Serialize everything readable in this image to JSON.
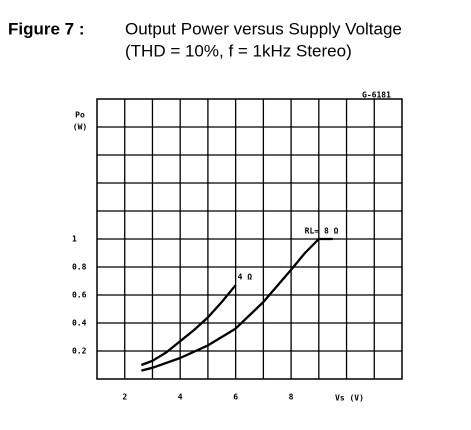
{
  "chart_data": {
    "type": "line",
    "figure_label": "Figure 7 :",
    "title": "Output Power versus Supply Voltage",
    "subtitle": "(THD = 10%, f = 1kHz Stereo)",
    "code": "G-6181",
    "ylabel": "Po",
    "yunit": "(W)",
    "xlabel": "Vs (V)",
    "xlim": [
      1,
      12
    ],
    "ylim": [
      0,
      2
    ],
    "xticks": [
      2,
      4,
      6,
      8
    ],
    "yticks": [
      0.2,
      0.4,
      0.6,
      0.8,
      1
    ],
    "xgrid": [
      2,
      3,
      4,
      5,
      6,
      7,
      8,
      9,
      10,
      11
    ],
    "ygrid": [
      0.2,
      0.4,
      0.6,
      0.8,
      1,
      1.2,
      1.4,
      1.6,
      1.8
    ],
    "series": [
      {
        "name": "4 Ω",
        "color": "#000000",
        "x": [
          2.6,
          3,
          3.5,
          4,
          4.5,
          5,
          5.5,
          6
        ],
        "values": [
          0.1,
          0.13,
          0.19,
          0.27,
          0.35,
          0.44,
          0.55,
          0.67
        ]
      },
      {
        "name": "RL= 8 Ω",
        "color": "#000000",
        "x": [
          2.6,
          3,
          4,
          5,
          6,
          7,
          8,
          8.5,
          9,
          9.5
        ],
        "values": [
          0.06,
          0.08,
          0.15,
          0.24,
          0.36,
          0.55,
          0.78,
          0.9,
          1,
          1
        ]
      }
    ]
  }
}
